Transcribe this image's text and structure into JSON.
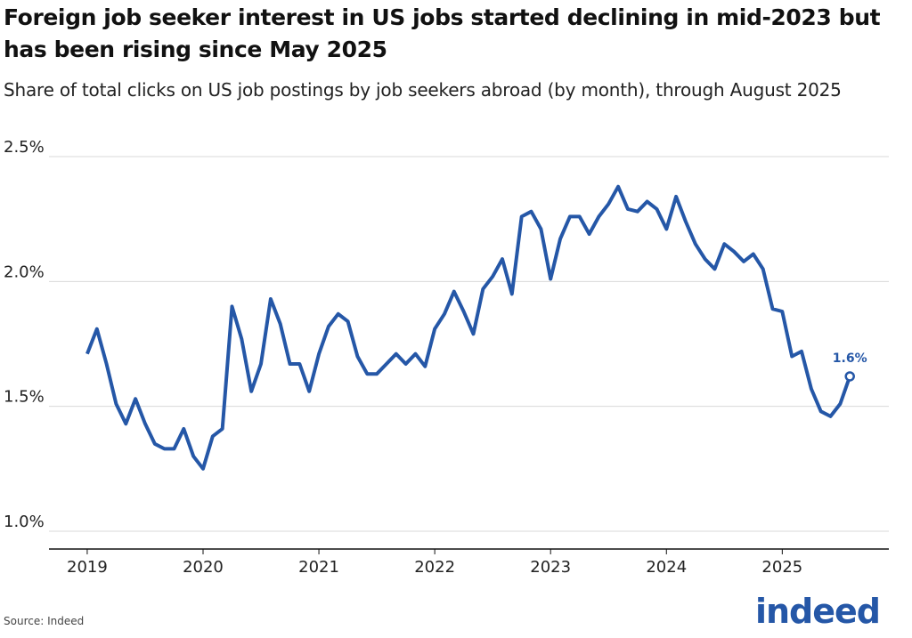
{
  "chart_data": {
    "type": "line",
    "title": "Foreign job seeker interest in US jobs started declining in mid-2023 but has been rising since May 2025",
    "subtitle": "Share of total clicks on US job postings by job seekers abroad (by month), through August 2025",
    "source": "Source: Indeed",
    "logo": "indeed",
    "color": "#2557a7",
    "grid": true,
    "x": [
      "2019-01",
      "2019-02",
      "2019-03",
      "2019-04",
      "2019-05",
      "2019-06",
      "2019-07",
      "2019-08",
      "2019-09",
      "2019-10",
      "2019-11",
      "2019-12",
      "2020-01",
      "2020-02",
      "2020-03",
      "2020-04",
      "2020-05",
      "2020-06",
      "2020-07",
      "2020-08",
      "2020-09",
      "2020-10",
      "2020-11",
      "2020-12",
      "2021-01",
      "2021-02",
      "2021-03",
      "2021-04",
      "2021-05",
      "2021-06",
      "2021-07",
      "2021-08",
      "2021-09",
      "2021-10",
      "2021-11",
      "2021-12",
      "2022-01",
      "2022-02",
      "2022-03",
      "2022-04",
      "2022-05",
      "2022-06",
      "2022-07",
      "2022-08",
      "2022-09",
      "2022-10",
      "2022-11",
      "2022-12",
      "2023-01",
      "2023-02",
      "2023-03",
      "2023-04",
      "2023-05",
      "2023-06",
      "2023-07",
      "2023-08",
      "2023-09",
      "2023-10",
      "2023-11",
      "2023-12",
      "2024-01",
      "2024-02",
      "2024-03",
      "2024-04",
      "2024-05",
      "2024-06",
      "2024-07",
      "2024-08",
      "2024-09",
      "2024-10",
      "2024-11",
      "2024-12",
      "2025-01",
      "2025-02",
      "2025-03",
      "2025-04",
      "2025-05",
      "2025-06",
      "2025-07",
      "2025-08"
    ],
    "values": [
      1.71,
      1.81,
      1.67,
      1.51,
      1.43,
      1.53,
      1.43,
      1.35,
      1.33,
      1.33,
      1.41,
      1.3,
      1.25,
      1.38,
      1.41,
      1.9,
      1.77,
      1.56,
      1.67,
      1.93,
      1.83,
      1.67,
      1.67,
      1.56,
      1.71,
      1.82,
      1.87,
      1.84,
      1.7,
      1.63,
      1.63,
      1.67,
      1.71,
      1.67,
      1.71,
      1.66,
      1.81,
      1.87,
      1.96,
      1.88,
      1.79,
      1.97,
      2.02,
      2.09,
      1.95,
      2.26,
      2.28,
      2.21,
      2.01,
      2.17,
      2.26,
      2.26,
      2.19,
      2.26,
      2.31,
      2.38,
      2.29,
      2.28,
      2.32,
      2.29,
      2.21,
      2.34,
      2.24,
      2.15,
      2.09,
      2.05,
      2.15,
      2.12,
      2.08,
      2.11,
      2.05,
      1.89,
      1.88,
      1.7,
      1.72,
      1.57,
      1.48,
      1.46,
      1.51,
      1.62
    ],
    "value_labels": [
      null,
      null,
      null,
      null,
      null,
      null,
      null,
      null,
      null,
      null,
      null,
      null,
      null,
      null,
      null,
      null,
      null,
      null,
      null,
      null,
      null,
      null,
      null,
      null,
      null,
      null,
      null,
      null,
      null,
      null,
      null,
      null,
      null,
      null,
      null,
      null,
      null,
      null,
      null,
      null,
      null,
      null,
      null,
      null,
      null,
      null,
      null,
      null,
      null,
      null,
      null,
      null,
      null,
      null,
      null,
      null,
      null,
      null,
      null,
      null,
      null,
      null,
      null,
      null,
      null,
      null,
      null,
      null,
      null,
      null,
      null,
      null,
      null,
      null,
      null,
      null,
      null,
      null,
      null,
      "1.6%"
    ],
    "xlim": [
      2018.67,
      2025.92
    ],
    "xticks": [
      2019,
      2020,
      2021,
      2022,
      2023,
      2024,
      2025
    ],
    "ylim": [
      1.0,
      2.5
    ],
    "yticks": [
      {
        "value": 1.0,
        "label": "1.0%"
      },
      {
        "value": 1.5,
        "label": "1.5%"
      },
      {
        "value": 2.0,
        "label": "2.0%"
      },
      {
        "value": 2.5,
        "label": "2.5%"
      }
    ]
  }
}
